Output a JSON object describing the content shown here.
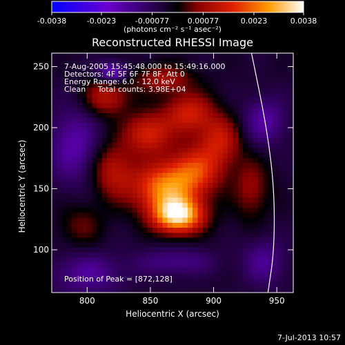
{
  "chart_data": {
    "type": "heatmap",
    "title": "Reconstructed RHESSI Image",
    "xlabel": "Heliocentric X (arcsec)",
    "ylabel": "Heliocentric Y (arcsec)",
    "xlim": [
      772,
      963
    ],
    "ylim": [
      65,
      261
    ],
    "x_ticks": [
      800,
      850,
      900,
      950
    ],
    "y_ticks": [
      100,
      150,
      200,
      250
    ],
    "colorbar": {
      "min": -0.0038,
      "max": 0.0038,
      "tick_values": [
        -0.0038,
        -0.0023,
        -0.00077,
        0.00077,
        0.0023,
        0.0038
      ],
      "tick_labels": [
        "-0.0038",
        "-0.0023",
        "-0.00077",
        "0.00077",
        "0.0023",
        "0.0038"
      ],
      "units_text": "(photons cm⁻² s⁻¹ asec⁻²)"
    },
    "annotations": {
      "time_range": "7-Aug-2005 15:45:48.000 to 15:49:16.000",
      "detectors": "Detectors: 4F 5F 6F 7F 8F, Att 0",
      "energy_range": "Energy Range: 6.0 - 12.0 keV",
      "clean_counts": "Clean     Total counts: 3.98E+04",
      "peak_position": "Position of Peak = [872,128]"
    },
    "limb_curve": [
      [
        930,
        261
      ],
      [
        942,
        200
      ],
      [
        948,
        150
      ],
      [
        948,
        100
      ],
      [
        943,
        65
      ]
    ],
    "sources": [
      {
        "x": 872,
        "y": 128,
        "sx": 14,
        "sy": 10,
        "amp": 0.0038
      },
      {
        "x": 860,
        "y": 150,
        "sx": 18,
        "sy": 14,
        "amp": 0.0026
      },
      {
        "x": 885,
        "y": 165,
        "sx": 16,
        "sy": 14,
        "amp": 0.002
      },
      {
        "x": 848,
        "y": 195,
        "sx": 13,
        "sy": 12,
        "amp": 0.0019
      },
      {
        "x": 880,
        "y": 212,
        "sx": 14,
        "sy": 12,
        "amp": 0.0018
      },
      {
        "x": 905,
        "y": 190,
        "sx": 12,
        "sy": 14,
        "amp": 0.0016
      },
      {
        "x": 820,
        "y": 165,
        "sx": 12,
        "sy": 16,
        "amp": 0.0015
      },
      {
        "x": 815,
        "y": 225,
        "sx": 13,
        "sy": 11,
        "amp": 0.0015
      },
      {
        "x": 860,
        "y": 240,
        "sx": 16,
        "sy": 8,
        "amp": 0.0013
      },
      {
        "x": 930,
        "y": 150,
        "sx": 10,
        "sy": 18,
        "amp": 0.0011
      },
      {
        "x": 795,
        "y": 120,
        "sx": 12,
        "sy": 12,
        "amp": 0.0008
      },
      {
        "x": 820,
        "y": 245,
        "sx": 8,
        "sy": 6,
        "amp": -0.0018
      },
      {
        "x": 790,
        "y": 185,
        "sx": 14,
        "sy": 22,
        "amp": -0.0013
      },
      {
        "x": 940,
        "y": 205,
        "sx": 12,
        "sy": 14,
        "amp": -0.0012
      },
      {
        "x": 800,
        "y": 80,
        "sx": 20,
        "sy": 12,
        "amp": -0.0011
      },
      {
        "x": 940,
        "y": 90,
        "sx": 12,
        "sy": 14,
        "amp": -0.001
      },
      {
        "x": 870,
        "y": 90,
        "sx": 22,
        "sy": 8,
        "amp": -0.0009
      }
    ]
  },
  "footer": {
    "timestamp": "7-Jul-2013 10:57"
  }
}
